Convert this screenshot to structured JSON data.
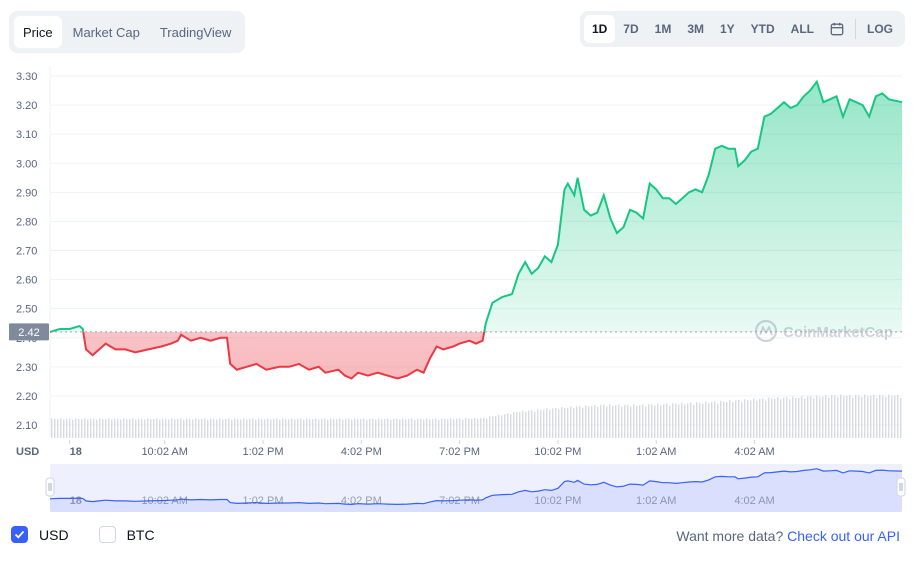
{
  "tabs": [
    {
      "label": "Price",
      "active": true
    },
    {
      "label": "Market Cap",
      "active": false
    },
    {
      "label": "TradingView",
      "active": false
    }
  ],
  "ranges": [
    {
      "label": "1D",
      "active": true
    },
    {
      "label": "7D",
      "active": false
    },
    {
      "label": "1M",
      "active": false
    },
    {
      "label": "3M",
      "active": false
    },
    {
      "label": "1Y",
      "active": false
    },
    {
      "label": "YTD",
      "active": false
    },
    {
      "label": "ALL",
      "active": false
    }
  ],
  "calendar_icon": "calendar-icon",
  "log_label": "LOG",
  "watermark": "CoinMarketCap",
  "currency_label": "USD",
  "colors": {
    "up": "#16c784",
    "down": "#ea3943",
    "brush": "#3861fb",
    "accent": "#3861fb"
  },
  "chart_data": {
    "type": "area",
    "open_price": 2.42,
    "current_label": "2.42",
    "y_ticks": [
      "3.30",
      "3.20",
      "3.10",
      "3.00",
      "2.90",
      "2.80",
      "2.70",
      "2.60",
      "2.50",
      "2.40",
      "2.30",
      "2.20",
      "2.10"
    ],
    "ylim": [
      2.1,
      3.3
    ],
    "x_ticks": [
      "18",
      "10:02 AM",
      "1:02 PM",
      "4:02 PM",
      "7:02 PM",
      "10:02 PM",
      "1:02 AM",
      "4:02 AM"
    ],
    "x_range": [
      0,
      26
    ],
    "x_tick_positions": [
      0.6,
      3.5,
      6.5,
      9.5,
      12.5,
      15.5,
      18.5,
      21.5
    ],
    "prices": [
      [
        0,
        2.42
      ],
      [
        0.3,
        2.43
      ],
      [
        0.6,
        2.43
      ],
      [
        0.9,
        2.44
      ],
      [
        1.0,
        2.43
      ],
      [
        1.1,
        2.36
      ],
      [
        1.3,
        2.34
      ],
      [
        1.5,
        2.36
      ],
      [
        1.7,
        2.38
      ],
      [
        2.0,
        2.36
      ],
      [
        2.3,
        2.36
      ],
      [
        2.6,
        2.35
      ],
      [
        3.0,
        2.36
      ],
      [
        3.4,
        2.37
      ],
      [
        3.7,
        2.38
      ],
      [
        3.9,
        2.39
      ],
      [
        4.0,
        2.41
      ],
      [
        4.3,
        2.39
      ],
      [
        4.6,
        2.4
      ],
      [
        4.9,
        2.39
      ],
      [
        5.2,
        2.4
      ],
      [
        5.4,
        2.4
      ],
      [
        5.5,
        2.31
      ],
      [
        5.7,
        2.29
      ],
      [
        6.0,
        2.3
      ],
      [
        6.3,
        2.31
      ],
      [
        6.6,
        2.29
      ],
      [
        7.0,
        2.3
      ],
      [
        7.3,
        2.3
      ],
      [
        7.6,
        2.31
      ],
      [
        7.9,
        2.29
      ],
      [
        8.2,
        2.3
      ],
      [
        8.4,
        2.28
      ],
      [
        8.8,
        2.29
      ],
      [
        9.0,
        2.27
      ],
      [
        9.2,
        2.26
      ],
      [
        9.4,
        2.28
      ],
      [
        9.7,
        2.27
      ],
      [
        10.0,
        2.28
      ],
      [
        10.3,
        2.27
      ],
      [
        10.6,
        2.26
      ],
      [
        10.9,
        2.27
      ],
      [
        11.2,
        2.29
      ],
      [
        11.4,
        2.28
      ],
      [
        11.6,
        2.33
      ],
      [
        11.8,
        2.37
      ],
      [
        12.0,
        2.36
      ],
      [
        12.3,
        2.37
      ],
      [
        12.5,
        2.38
      ],
      [
        12.8,
        2.39
      ],
      [
        13.0,
        2.38
      ],
      [
        13.2,
        2.39
      ],
      [
        13.3,
        2.45
      ],
      [
        13.5,
        2.52
      ],
      [
        13.8,
        2.54
      ],
      [
        14.1,
        2.55
      ],
      [
        14.3,
        2.62
      ],
      [
        14.5,
        2.66
      ],
      [
        14.7,
        2.62
      ],
      [
        14.9,
        2.64
      ],
      [
        15.1,
        2.68
      ],
      [
        15.3,
        2.66
      ],
      [
        15.5,
        2.72
      ],
      [
        15.7,
        2.91
      ],
      [
        15.8,
        2.93
      ],
      [
        16.0,
        2.89
      ],
      [
        16.1,
        2.95
      ],
      [
        16.3,
        2.84
      ],
      [
        16.5,
        2.82
      ],
      [
        16.7,
        2.83
      ],
      [
        16.9,
        2.89
      ],
      [
        17.1,
        2.81
      ],
      [
        17.3,
        2.76
      ],
      [
        17.5,
        2.78
      ],
      [
        17.7,
        2.84
      ],
      [
        17.9,
        2.83
      ],
      [
        18.1,
        2.81
      ],
      [
        18.3,
        2.93
      ],
      [
        18.5,
        2.91
      ],
      [
        18.7,
        2.88
      ],
      [
        18.9,
        2.88
      ],
      [
        19.1,
        2.86
      ],
      [
        19.3,
        2.88
      ],
      [
        19.5,
        2.9
      ],
      [
        19.7,
        2.91
      ],
      [
        19.9,
        2.9
      ],
      [
        20.1,
        2.96
      ],
      [
        20.3,
        3.05
      ],
      [
        20.5,
        3.06
      ],
      [
        20.7,
        3.05
      ],
      [
        20.9,
        3.05
      ],
      [
        21.0,
        2.99
      ],
      [
        21.2,
        3.01
      ],
      [
        21.4,
        3.04
      ],
      [
        21.6,
        3.05
      ],
      [
        21.8,
        3.16
      ],
      [
        22.0,
        3.17
      ],
      [
        22.2,
        3.19
      ],
      [
        22.4,
        3.21
      ],
      [
        22.6,
        3.19
      ],
      [
        22.8,
        3.2
      ],
      [
        23.0,
        3.23
      ],
      [
        23.2,
        3.25
      ],
      [
        23.4,
        3.28
      ],
      [
        23.6,
        3.21
      ],
      [
        23.8,
        3.22
      ],
      [
        24.0,
        3.23
      ],
      [
        24.2,
        3.16
      ],
      [
        24.4,
        3.22
      ],
      [
        24.6,
        3.21
      ],
      [
        24.8,
        3.2
      ],
      [
        25.0,
        3.16
      ],
      [
        25.2,
        3.23
      ],
      [
        25.4,
        3.24
      ],
      [
        25.6,
        3.22
      ],
      [
        26,
        3.21
      ]
    ],
    "volume": [
      [
        0,
        0.28
      ],
      [
        2,
        0.28
      ],
      [
        4,
        0.28
      ],
      [
        6,
        0.28
      ],
      [
        8,
        0.28
      ],
      [
        10,
        0.28
      ],
      [
        12,
        0.28
      ],
      [
        13.2,
        0.29
      ],
      [
        14.2,
        0.38
      ],
      [
        15.5,
        0.44
      ],
      [
        16.8,
        0.48
      ],
      [
        18,
        0.48
      ],
      [
        20,
        0.52
      ],
      [
        22,
        0.58
      ],
      [
        24,
        0.62
      ],
      [
        26,
        0.62
      ]
    ]
  }
}
